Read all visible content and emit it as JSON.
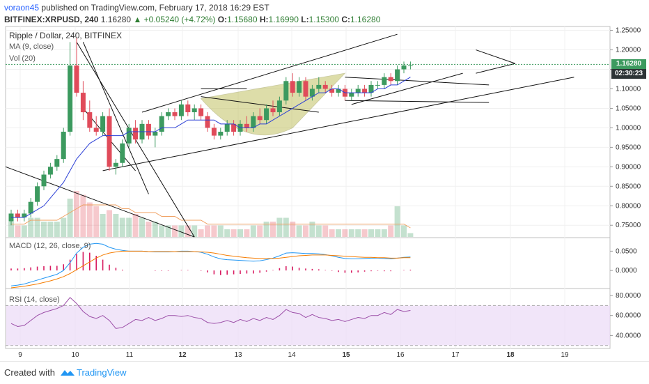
{
  "header": {
    "author": "voraon45",
    "published": "published on TradingView.com, February 17, 2018 16:29 EST",
    "symbol": "BITFINEX:XRPUSD, 240",
    "last": "1.16280",
    "change": "▲ +0.05240 (+4.72%)",
    "o_label": "O:",
    "o": "1.15680",
    "h_label": "H:",
    "h": "1.16990",
    "l_label": "L:",
    "l": "1.15300",
    "c_label": "C:",
    "c": "1.16280"
  },
  "legend": {
    "main": "Ripple / Dollar, 240, BITFINEX",
    "ma": "MA (9, close)",
    "vol": "Vol (20)",
    "macd": "MACD (12, 26, close, 9)",
    "rsi": "RSI (14, close)"
  },
  "price_tags": {
    "last": "1.16280",
    "countdown": "02:30:23"
  },
  "footer": {
    "created": "Created with",
    "brand": "TradingView"
  },
  "colors": {
    "up": "#3c9a5f",
    "down": "#e04b5a",
    "ma": "#2b3fd6",
    "vol_ma": "#f0a060",
    "macd": "#2196f3",
    "signal": "#f57c00",
    "hist": "#d81b60",
    "rsi": "#9c4fa8",
    "rsi_band": "#ecdcf7",
    "cup": "#b5b642",
    "last": "#3c9a5f",
    "tag": "#2d3436"
  },
  "chart_data": [
    {
      "type": "candlestick",
      "title": "Ripple / Dollar, 240, BITFINEX",
      "x_tick_labels": [
        "9",
        "10",
        "11",
        "12",
        "13",
        "14",
        "15",
        "16",
        "17",
        "18",
        "19"
      ],
      "y_ticks": [
        "1.25000",
        "1.20000",
        "1.15000",
        "1.10000",
        "1.05000",
        "1.00000",
        "0.95000",
        "0.90000",
        "0.85000",
        "0.80000",
        "0.75000"
      ],
      "ylim": [
        0.72,
        1.26
      ],
      "candles": [
        [
          0.76,
          0.79,
          0.75,
          0.78
        ],
        [
          0.78,
          0.79,
          0.76,
          0.77
        ],
        [
          0.77,
          0.79,
          0.76,
          0.78
        ],
        [
          0.78,
          0.82,
          0.77,
          0.81
        ],
        [
          0.81,
          0.86,
          0.8,
          0.85
        ],
        [
          0.85,
          0.89,
          0.84,
          0.88
        ],
        [
          0.88,
          0.91,
          0.87,
          0.9
        ],
        [
          0.9,
          0.93,
          0.89,
          0.92
        ],
        [
          0.92,
          1.0,
          0.91,
          0.99
        ],
        [
          0.99,
          1.22,
          0.98,
          1.16
        ],
        [
          1.16,
          1.23,
          1.08,
          1.09
        ],
        [
          1.09,
          1.12,
          1.02,
          1.04
        ],
        [
          1.04,
          1.07,
          0.99,
          1.0
        ],
        [
          1.0,
          1.03,
          0.98,
          0.99
        ],
        [
          0.99,
          1.04,
          0.98,
          1.03
        ],
        [
          1.03,
          1.05,
          0.89,
          0.9
        ],
        [
          0.9,
          0.92,
          0.88,
          0.91
        ],
        [
          0.91,
          0.97,
          0.9,
          0.96
        ],
        [
          0.96,
          1.01,
          0.95,
          1.0
        ],
        [
          1.0,
          1.02,
          0.96,
          0.97
        ],
        [
          0.97,
          1.02,
          0.96,
          1.01
        ],
        [
          1.01,
          1.02,
          0.97,
          0.98
        ],
        [
          0.98,
          1.0,
          0.95,
          0.99
        ],
        [
          0.99,
          1.04,
          0.98,
          1.03
        ],
        [
          1.03,
          1.05,
          1.02,
          1.04
        ],
        [
          1.04,
          1.05,
          1.02,
          1.03
        ],
        [
          1.03,
          1.07,
          1.02,
          1.06
        ],
        [
          1.06,
          1.07,
          1.03,
          1.04
        ],
        [
          1.04,
          1.06,
          1.02,
          1.05
        ],
        [
          1.05,
          1.06,
          1.02,
          1.03
        ],
        [
          1.03,
          1.04,
          0.99,
          1.0
        ],
        [
          1.0,
          1.01,
          0.97,
          0.98
        ],
        [
          0.98,
          1.0,
          0.97,
          0.99
        ],
        [
          0.99,
          1.02,
          0.98,
          1.01
        ],
        [
          1.01,
          1.02,
          0.98,
          0.99
        ],
        [
          0.99,
          1.02,
          0.98,
          1.01
        ],
        [
          1.01,
          1.03,
          0.99,
          1.0
        ],
        [
          1.0,
          1.04,
          0.99,
          1.03
        ],
        [
          1.03,
          1.05,
          1.01,
          1.02
        ],
        [
          1.02,
          1.06,
          1.01,
          1.05
        ],
        [
          1.05,
          1.07,
          1.03,
          1.04
        ],
        [
          1.04,
          1.08,
          1.03,
          1.07
        ],
        [
          1.07,
          1.13,
          1.06,
          1.12
        ],
        [
          1.12,
          1.14,
          1.08,
          1.09
        ],
        [
          1.09,
          1.13,
          1.08,
          1.12
        ],
        [
          1.12,
          1.13,
          1.07,
          1.08
        ],
        [
          1.08,
          1.11,
          1.07,
          1.1
        ],
        [
          1.1,
          1.13,
          1.09,
          1.11
        ],
        [
          1.11,
          1.12,
          1.09,
          1.1
        ],
        [
          1.1,
          1.11,
          1.08,
          1.09
        ],
        [
          1.09,
          1.11,
          1.08,
          1.1
        ],
        [
          1.1,
          1.11,
          1.07,
          1.08
        ],
        [
          1.08,
          1.1,
          1.07,
          1.09
        ],
        [
          1.09,
          1.11,
          1.08,
          1.1
        ],
        [
          1.1,
          1.11,
          1.08,
          1.09
        ],
        [
          1.09,
          1.12,
          1.08,
          1.11
        ],
        [
          1.11,
          1.12,
          1.1,
          1.11
        ],
        [
          1.11,
          1.14,
          1.1,
          1.13
        ],
        [
          1.13,
          1.14,
          1.11,
          1.12
        ],
        [
          1.12,
          1.16,
          1.11,
          1.15
        ],
        [
          1.15,
          1.17,
          1.14,
          1.16
        ],
        [
          1.16,
          1.17,
          1.15,
          1.16
        ]
      ],
      "ma_9": [
        0.77,
        0.77,
        0.77,
        0.78,
        0.79,
        0.8,
        0.82,
        0.84,
        0.86,
        0.89,
        0.92,
        0.94,
        0.96,
        0.97,
        0.98,
        0.98,
        0.98,
        0.98,
        0.99,
        0.99,
        0.99,
        0.99,
        0.99,
        1.0,
        1.0,
        1.0,
        1.01,
        1.02,
        1.02,
        1.02,
        1.02,
        1.02,
        1.01,
        1.01,
        1.01,
        1.0,
        1.0,
        1.0,
        1.01,
        1.01,
        1.02,
        1.03,
        1.04,
        1.05,
        1.06,
        1.07,
        1.08,
        1.09,
        1.09,
        1.1,
        1.1,
        1.09,
        1.09,
        1.09,
        1.09,
        1.09,
        1.1,
        1.1,
        1.11,
        1.11,
        1.12,
        1.13
      ],
      "volume": [
        4,
        3,
        3,
        5,
        5,
        4,
        4,
        4,
        5,
        10,
        12,
        11,
        9,
        8,
        6,
        7,
        6,
        5,
        5,
        6,
        5,
        4,
        4,
        3,
        3,
        3,
        3,
        3,
        3,
        2,
        3,
        3,
        3,
        2,
        2,
        2,
        2,
        3,
        3,
        4,
        4,
        5,
        5,
        4,
        3,
        3,
        4,
        3,
        3,
        2,
        2,
        2,
        2,
        2,
        2,
        2,
        2,
        2,
        3,
        8,
        3,
        1
      ],
      "volume_ma": [
        3,
        3,
        3,
        4,
        4,
        4,
        4,
        4,
        5,
        6,
        7,
        8,
        8,
        8,
        8,
        8,
        8,
        7,
        7,
        6,
        6,
        6,
        6,
        5,
        5,
        5,
        4,
        4,
        4,
        4,
        3,
        3,
        3,
        3,
        3,
        3,
        3,
        3,
        3,
        3,
        3,
        3,
        3,
        3,
        3,
        3,
        3,
        3,
        3,
        3,
        3,
        3,
        3,
        3,
        3,
        3,
        3,
        3,
        3,
        3,
        3,
        2
      ]
    },
    {
      "type": "line",
      "title": "MACD (12, 26, close, 9)",
      "y_ticks": [
        "0.0500",
        "0.0000"
      ],
      "ylim": [
        -0.045,
        0.085
      ],
      "macd": [
        -0.04,
        -0.038,
        -0.035,
        -0.03,
        -0.025,
        -0.02,
        -0.015,
        -0.01,
        0.0,
        0.02,
        0.045,
        0.06,
        0.068,
        0.07,
        0.068,
        0.06,
        0.055,
        0.052,
        0.05,
        0.05,
        0.05,
        0.049,
        0.048,
        0.048,
        0.048,
        0.049,
        0.05,
        0.05,
        0.049,
        0.047,
        0.042,
        0.035,
        0.03,
        0.028,
        0.027,
        0.026,
        0.025,
        0.024,
        0.025,
        0.028,
        0.032,
        0.038,
        0.045,
        0.046,
        0.045,
        0.044,
        0.044,
        0.043,
        0.041,
        0.038,
        0.034,
        0.031,
        0.03,
        0.03,
        0.031,
        0.032,
        0.032,
        0.031,
        0.03,
        0.032,
        0.034,
        0.035
      ],
      "signal": [
        -0.045,
        -0.043,
        -0.041,
        -0.038,
        -0.035,
        -0.031,
        -0.027,
        -0.022,
        -0.016,
        -0.008,
        0.002,
        0.012,
        0.022,
        0.032,
        0.04,
        0.045,
        0.048,
        0.05,
        0.05,
        0.05,
        0.05,
        0.049,
        0.049,
        0.049,
        0.049,
        0.049,
        0.049,
        0.049,
        0.049,
        0.048,
        0.047,
        0.045,
        0.042,
        0.039,
        0.037,
        0.035,
        0.033,
        0.032,
        0.031,
        0.031,
        0.031,
        0.032,
        0.034,
        0.036,
        0.038,
        0.039,
        0.04,
        0.04,
        0.04,
        0.039,
        0.038,
        0.037,
        0.036,
        0.035,
        0.034,
        0.034,
        0.033,
        0.033,
        0.032,
        0.032,
        0.033,
        0.033
      ],
      "hist": [
        0.005,
        0.005,
        0.006,
        0.008,
        0.01,
        0.011,
        0.012,
        0.012,
        0.016,
        0.028,
        0.043,
        0.048,
        0.046,
        0.038,
        0.028,
        0.015,
        0.007,
        0.002,
        0.0,
        0.0,
        0.0,
        0.0,
        -0.001,
        -0.001,
        -0.001,
        0.0,
        0.001,
        0.001,
        0.0,
        -0.001,
        -0.005,
        -0.01,
        -0.012,
        -0.011,
        -0.01,
        -0.009,
        -0.008,
        -0.008,
        -0.006,
        -0.003,
        0.001,
        0.006,
        0.011,
        0.01,
        0.007,
        0.005,
        0.004,
        0.003,
        0.001,
        -0.001,
        -0.004,
        -0.006,
        -0.006,
        -0.005,
        -0.003,
        -0.002,
        -0.001,
        -0.002,
        -0.002,
        0.0,
        0.001,
        0.002
      ]
    },
    {
      "type": "line",
      "title": "RSI (14, close)",
      "y_ticks": [
        "80.0000",
        "60.0000",
        "40.0000"
      ],
      "ylim": [
        27,
        87
      ],
      "band": [
        30,
        70
      ],
      "values": [
        52,
        49,
        50,
        55,
        60,
        63,
        65,
        67,
        70,
        78,
        72,
        64,
        59,
        57,
        60,
        55,
        47,
        48,
        52,
        56,
        55,
        58,
        55,
        57,
        60,
        60,
        59,
        60,
        58,
        57,
        53,
        52,
        53,
        55,
        53,
        56,
        54,
        57,
        55,
        58,
        56,
        60,
        66,
        63,
        62,
        58,
        61,
        58,
        57,
        55,
        56,
        54,
        56,
        58,
        57,
        60,
        60,
        63,
        61,
        66,
        64,
        65
      ]
    }
  ]
}
